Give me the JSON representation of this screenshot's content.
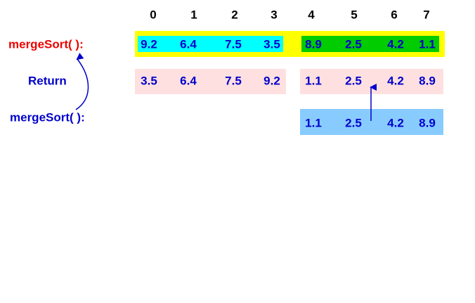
{
  "indices": [
    "0",
    "1",
    "2",
    "3",
    "4",
    "5",
    "6",
    "7"
  ],
  "labels": {
    "call1": "mergeSort( ):",
    "return": "Return",
    "call2": "mergeSort( ):"
  },
  "rows": [
    [
      "9.2",
      "6.4",
      "7.5",
      "3.5",
      "8.9",
      "2.5",
      "4.2",
      "1.1"
    ],
    [
      "3.5",
      "6.4",
      "7.5",
      "9.2",
      "1.1",
      "2.5",
      "4.2",
      "8.9"
    ],
    [
      "1.1",
      "2.5",
      "4.2",
      "8.9"
    ]
  ]
}
